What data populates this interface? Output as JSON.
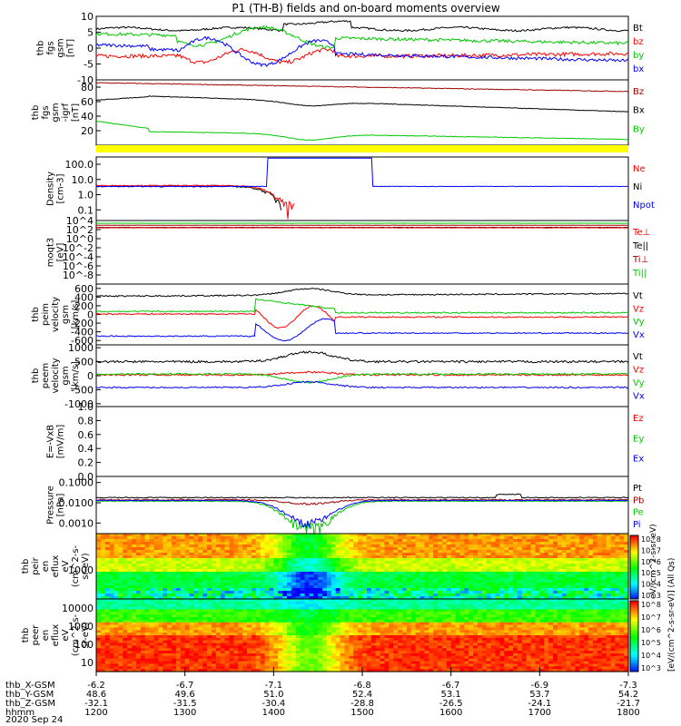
{
  "title": "P1 (TH-B) fields and on-board moments overview",
  "date": "2020 Sep 24",
  "colorbar_label": "[eV/(cm^2-s-sr-eV)] (All Qs)",
  "colorbar_label_top": "eV/(cm^2-s-sr-eV)",
  "colors": {
    "black": "#000000",
    "red": "#ff0000",
    "green": "#00c800",
    "blue": "#0000ff",
    "darkred": "#a00000",
    "yellow": "#ffff00"
  },
  "chart_data": [
    {
      "type": "line",
      "ylabel": [
        "thb",
        "fgs",
        "gsm",
        "[nT]"
      ],
      "ylim": [
        -10,
        10
      ],
      "ticks": [
        "10",
        "5",
        "0",
        "-5",
        "-10"
      ],
      "series": [
        {
          "name": "Bt",
          "color": "#000000"
        },
        {
          "name": "bz",
          "color": "#ff0000"
        },
        {
          "name": "by",
          "color": "#00c800"
        },
        {
          "name": "bx",
          "color": "#0000ff"
        }
      ]
    },
    {
      "type": "line",
      "ylabel": [
        "thb",
        "fgs",
        "gsm",
        "-igrf",
        "[nT]"
      ],
      "ylim": [
        0,
        90
      ],
      "ticks": [
        "80",
        "60",
        "40",
        "20"
      ],
      "series": [
        {
          "name": "Bz",
          "color": "#a00000"
        },
        {
          "name": "Bx",
          "color": "#000000"
        },
        {
          "name": "By",
          "color": "#00c800"
        }
      ]
    },
    {
      "type": "line",
      "ylabel": [
        "Density",
        "[cm-3]"
      ],
      "scale": "log",
      "ylim": [
        0.02,
        300
      ],
      "ticks": [
        "100.0",
        "10.0",
        "1.0",
        "0.1"
      ],
      "series": [
        {
          "name": "Ne",
          "color": "#ff0000"
        },
        {
          "name": "Ni",
          "color": "#000000"
        },
        {
          "name": "Npot",
          "color": "#0000ff"
        }
      ]
    },
    {
      "type": "line",
      "ylabel": [
        "moqt3",
        "[eV]"
      ],
      "scale": "log",
      "ylim": [
        1e-10,
        10000.0
      ],
      "ticks": [
        "10^4",
        "10^2",
        "10^0",
        "10^-2",
        "10^-4",
        "10^-6",
        "10^-8"
      ],
      "series": [
        {
          "name": "Te⊥",
          "color": "#ff0000"
        },
        {
          "name": "Te||",
          "color": "#000000"
        },
        {
          "name": "Ti⊥",
          "color": "#a00000"
        },
        {
          "name": "Ti||",
          "color": "#00c800"
        }
      ]
    },
    {
      "type": "line",
      "ylabel": [
        "thb",
        "peim",
        "velocity",
        "gsm",
        "[km/s]"
      ],
      "ylim": [
        -700,
        700
      ],
      "ticks": [
        "600",
        "400",
        "200",
        "0",
        "-200",
        "-400",
        "-600"
      ],
      "series": [
        {
          "name": "Vt",
          "color": "#000000"
        },
        {
          "name": "Vz",
          "color": "#ff0000"
        },
        {
          "name": "Vy",
          "color": "#00c800"
        },
        {
          "name": "Vx",
          "color": "#0000ff"
        }
      ]
    },
    {
      "type": "line",
      "ylabel": [
        "thb",
        "peem",
        "velocity",
        "gsm",
        "[km/s]"
      ],
      "ylim": [
        -1100,
        1100
      ],
      "ticks": [
        "1000",
        "500",
        "0",
        "-500",
        "-1000"
      ],
      "series": [
        {
          "name": "Vt",
          "color": "#000000"
        },
        {
          "name": "Vz",
          "color": "#ff0000"
        },
        {
          "name": "Vy",
          "color": "#00c800"
        },
        {
          "name": "Vx",
          "color": "#0000ff"
        }
      ]
    },
    {
      "type": "line",
      "ylabel": [
        "E=-VxB",
        "[mV/m]"
      ],
      "ylim": [
        0,
        1
      ],
      "ticks": [
        "1.0",
        "0.8",
        "0.6",
        "0.4",
        "0.2",
        "0.0"
      ],
      "series": [
        {
          "name": "Ez",
          "color": "#ff0000"
        },
        {
          "name": "Ey",
          "color": "#00c800"
        },
        {
          "name": "Ex",
          "color": "#0000ff"
        }
      ]
    },
    {
      "type": "line",
      "ylabel": [
        "Pressure",
        "[nPa]"
      ],
      "scale": "log",
      "ylim": [
        0.0003,
        0.2
      ],
      "ticks": [
        "0.1000",
        "0.0100",
        "0.0010"
      ],
      "series": [
        {
          "name": "Pt",
          "color": "#000000"
        },
        {
          "name": "Pb",
          "color": "#a00000"
        },
        {
          "name": "Pe",
          "color": "#00c800"
        },
        {
          "name": "Pi",
          "color": "#0000ff"
        }
      ]
    },
    {
      "type": "heatmap",
      "ylabel": [
        "thb",
        "peir",
        "en",
        "eflux",
        "eV",
        "(cm^2-s-",
        "sr-eV)"
      ],
      "ticks": [
        "1000"
      ]
    },
    {
      "type": "heatmap",
      "ylabel": [
        "thb",
        "peer",
        "en",
        "eflux",
        "eV",
        "(cm^2-s-",
        "sr-eV)"
      ],
      "ticks": [
        "10000",
        "1000",
        "100",
        "10"
      ]
    }
  ],
  "colorbar_ticks": [
    "10^8",
    "10^7",
    "10^6",
    "10^5",
    "10^4",
    "10^3",
    "10^8",
    "10^7",
    "10^6",
    "10^5",
    "10^4",
    "10^3"
  ],
  "x_axis": {
    "rows": [
      {
        "label": "thb_X-GSM",
        "values": [
          "-6.2",
          "-6.7",
          "-7.1",
          "-6.8",
          "-6.7",
          "-6.9",
          "-7.3"
        ]
      },
      {
        "label": "thb_Y-GSM",
        "values": [
          "48.6",
          "49.6",
          "51.0",
          "52.4",
          "53.1",
          "53.7",
          "54.2"
        ]
      },
      {
        "label": "thb_Z-GSM",
        "values": [
          "-32.1",
          "-31.5",
          "-30.4",
          "-28.8",
          "-26.5",
          "-24.1",
          "-21.7"
        ]
      },
      {
        "label": "hhmm",
        "values": [
          "1200",
          "1300",
          "1400",
          "1500",
          "1600",
          "1700",
          "1800"
        ]
      }
    ]
  }
}
